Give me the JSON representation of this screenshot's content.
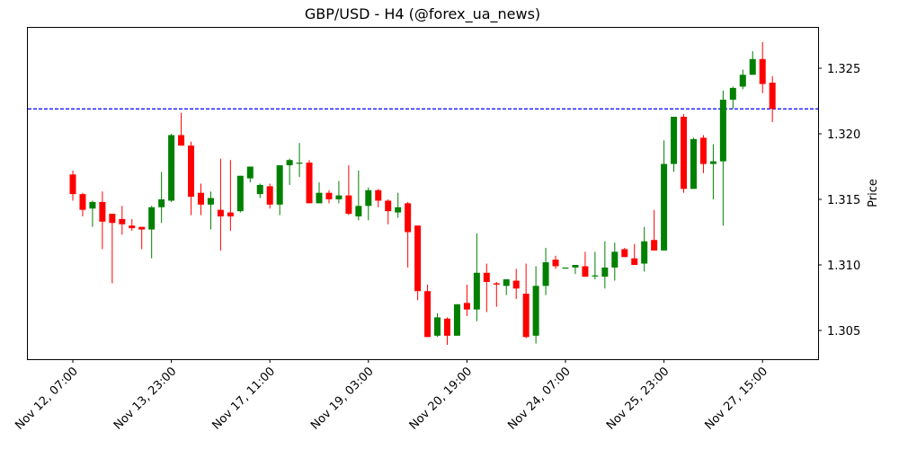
{
  "chart_data": {
    "type": "candlestick",
    "title": "GBP/USD - H4 (@forex_ua_news)",
    "xlabel": "",
    "ylabel": "Price",
    "ylim": [
      1.3028,
      1.3283
    ],
    "y_ticks": [
      "1.305",
      "1.310",
      "1.315",
      "1.320",
      "1.325"
    ],
    "x_ticks": [
      "Nov 12, 07:00",
      "Nov 13, 23:00",
      "Nov 17, 11:00",
      "Nov 19, 03:00",
      "Nov 20, 19:00",
      "Nov 24, 07:00",
      "Nov 25, 23:00",
      "Nov 27, 15:00"
    ],
    "x_tick_indices": [
      0,
      10,
      20,
      30,
      40,
      50,
      60,
      70
    ],
    "horizontal_line": {
      "value": 1.3219,
      "style": "dashed",
      "color": "#0000ff"
    },
    "colors": {
      "up": "#008000",
      "down": "#ff0000",
      "frame": "#000000"
    },
    "grid": false,
    "candles": [
      {
        "o": 1.3169,
        "h": 1.3172,
        "l": 1.3149,
        "c": 1.3154
      },
      {
        "o": 1.3154,
        "h": 1.3155,
        "l": 1.3137,
        "c": 1.3142
      },
      {
        "o": 1.3143,
        "h": 1.3149,
        "l": 1.3129,
        "c": 1.3148
      },
      {
        "o": 1.3148,
        "h": 1.3156,
        "l": 1.3112,
        "c": 1.3133
      },
      {
        "o": 1.3139,
        "h": 1.3139,
        "l": 1.3086,
        "c": 1.3132
      },
      {
        "o": 1.3135,
        "h": 1.3145,
        "l": 1.3123,
        "c": 1.3131
      },
      {
        "o": 1.313,
        "h": 1.3135,
        "l": 1.3126,
        "c": 1.3128
      },
      {
        "o": 1.3129,
        "h": 1.3129,
        "l": 1.3112,
        "c": 1.3127
      },
      {
        "o": 1.3127,
        "h": 1.3145,
        "l": 1.3105,
        "c": 1.3144
      },
      {
        "o": 1.3144,
        "h": 1.3171,
        "l": 1.3132,
        "c": 1.315
      },
      {
        "o": 1.3149,
        "h": 1.32,
        "l": 1.3148,
        "c": 1.3199
      },
      {
        "o": 1.3199,
        "h": 1.3216,
        "l": 1.3191,
        "c": 1.3191
      },
      {
        "o": 1.3191,
        "h": 1.3194,
        "l": 1.3138,
        "c": 1.3152
      },
      {
        "o": 1.3155,
        "h": 1.3162,
        "l": 1.3138,
        "c": 1.3146
      },
      {
        "o": 1.3146,
        "h": 1.3156,
        "l": 1.3127,
        "c": 1.3151
      },
      {
        "o": 1.3142,
        "h": 1.3181,
        "l": 1.3111,
        "c": 1.3137
      },
      {
        "o": 1.314,
        "h": 1.318,
        "l": 1.3126,
        "c": 1.3137
      },
      {
        "o": 1.3141,
        "h": 1.3168,
        "l": 1.314,
        "c": 1.3168
      },
      {
        "o": 1.3166,
        "h": 1.3175,
        "l": 1.3163,
        "c": 1.3175
      },
      {
        "o": 1.3154,
        "h": 1.3162,
        "l": 1.3151,
        "c": 1.3161
      },
      {
        "o": 1.316,
        "h": 1.3162,
        "l": 1.3143,
        "c": 1.3146
      },
      {
        "o": 1.3146,
        "h": 1.3176,
        "l": 1.3138,
        "c": 1.3176
      },
      {
        "o": 1.3176,
        "h": 1.3181,
        "l": 1.3161,
        "c": 1.318
      },
      {
        "o": 1.3178,
        "h": 1.3193,
        "l": 1.3167,
        "c": 1.3178
      },
      {
        "o": 1.3178,
        "h": 1.318,
        "l": 1.3147,
        "c": 1.3147
      },
      {
        "o": 1.3147,
        "h": 1.3163,
        "l": 1.3147,
        "c": 1.3155
      },
      {
        "o": 1.3155,
        "h": 1.3157,
        "l": 1.3147,
        "c": 1.315
      },
      {
        "o": 1.315,
        "h": 1.3164,
        "l": 1.3147,
        "c": 1.3153
      },
      {
        "o": 1.3153,
        "h": 1.3176,
        "l": 1.3138,
        "c": 1.3139
      },
      {
        "o": 1.3137,
        "h": 1.3172,
        "l": 1.3134,
        "c": 1.3145
      },
      {
        "o": 1.3145,
        "h": 1.3159,
        "l": 1.3134,
        "c": 1.3157
      },
      {
        "o": 1.3157,
        "h": 1.3158,
        "l": 1.3144,
        "c": 1.3149
      },
      {
        "o": 1.3149,
        "h": 1.315,
        "l": 1.3131,
        "c": 1.3141
      },
      {
        "o": 1.314,
        "h": 1.3155,
        "l": 1.3136,
        "c": 1.3144
      },
      {
        "o": 1.3147,
        "h": 1.3148,
        "l": 1.3098,
        "c": 1.3125
      },
      {
        "o": 1.313,
        "h": 1.313,
        "l": 1.3073,
        "c": 1.308
      },
      {
        "o": 1.308,
        "h": 1.3085,
        "l": 1.3045,
        "c": 1.3045
      },
      {
        "o": 1.3046,
        "h": 1.3063,
        "l": 1.3045,
        "c": 1.306
      },
      {
        "o": 1.3059,
        "h": 1.306,
        "l": 1.3039,
        "c": 1.3046
      },
      {
        "o": 1.3046,
        "h": 1.307,
        "l": 1.3046,
        "c": 1.307
      },
      {
        "o": 1.3071,
        "h": 1.3085,
        "l": 1.3061,
        "c": 1.3066
      },
      {
        "o": 1.3066,
        "h": 1.3124,
        "l": 1.3057,
        "c": 1.3094
      },
      {
        "o": 1.3094,
        "h": 1.3101,
        "l": 1.3064,
        "c": 1.3087
      },
      {
        "o": 1.3086,
        "h": 1.3087,
        "l": 1.3068,
        "c": 1.3085
      },
      {
        "o": 1.3084,
        "h": 1.3089,
        "l": 1.3077,
        "c": 1.3089
      },
      {
        "o": 1.3088,
        "h": 1.3097,
        "l": 1.3074,
        "c": 1.3082
      },
      {
        "o": 1.3078,
        "h": 1.3101,
        "l": 1.3044,
        "c": 1.3045
      },
      {
        "o": 1.3046,
        "h": 1.3099,
        "l": 1.304,
        "c": 1.3084
      },
      {
        "o": 1.3084,
        "h": 1.3113,
        "l": 1.3077,
        "c": 1.3102
      },
      {
        "o": 1.3104,
        "h": 1.3107,
        "l": 1.3097,
        "c": 1.3099
      },
      {
        "o": 1.3098,
        "h": 1.3098,
        "l": 1.3098,
        "c": 1.3098
      },
      {
        "o": 1.3098,
        "h": 1.31,
        "l": 1.3093,
        "c": 1.31
      },
      {
        "o": 1.3099,
        "h": 1.311,
        "l": 1.3091,
        "c": 1.3091
      },
      {
        "o": 1.3092,
        "h": 1.311,
        "l": 1.3089,
        "c": 1.3092
      },
      {
        "o": 1.3091,
        "h": 1.3118,
        "l": 1.3082,
        "c": 1.3098
      },
      {
        "o": 1.3098,
        "h": 1.3117,
        "l": 1.3088,
        "c": 1.311
      },
      {
        "o": 1.3112,
        "h": 1.3113,
        "l": 1.3106,
        "c": 1.3106
      },
      {
        "o": 1.3105,
        "h": 1.3116,
        "l": 1.31,
        "c": 1.31
      },
      {
        "o": 1.3101,
        "h": 1.3129,
        "l": 1.3095,
        "c": 1.3118
      },
      {
        "o": 1.3119,
        "h": 1.3142,
        "l": 1.3111,
        "c": 1.3111
      },
      {
        "o": 1.3111,
        "h": 1.3195,
        "l": 1.3111,
        "c": 1.3177
      },
      {
        "o": 1.3177,
        "h": 1.3213,
        "l": 1.3171,
        "c": 1.3213
      },
      {
        "o": 1.3213,
        "h": 1.3215,
        "l": 1.3155,
        "c": 1.3158
      },
      {
        "o": 1.3158,
        "h": 1.3197,
        "l": 1.3158,
        "c": 1.3196
      },
      {
        "o": 1.3197,
        "h": 1.3199,
        "l": 1.317,
        "c": 1.3177
      },
      {
        "o": 1.3177,
        "h": 1.3192,
        "l": 1.315,
        "c": 1.3179
      },
      {
        "o": 1.3179,
        "h": 1.3233,
        "l": 1.313,
        "c": 1.3226
      },
      {
        "o": 1.3226,
        "h": 1.3236,
        "l": 1.3219,
        "c": 1.3235
      },
      {
        "o": 1.3236,
        "h": 1.3249,
        "l": 1.3234,
        "c": 1.3245
      },
      {
        "o": 1.3245,
        "h": 1.3263,
        "l": 1.3245,
        "c": 1.3257
      },
      {
        "o": 1.3257,
        "h": 1.327,
        "l": 1.3231,
        "c": 1.3238
      },
      {
        "o": 1.3239,
        "h": 1.3244,
        "l": 1.3209,
        "c": 1.3219
      }
    ]
  }
}
